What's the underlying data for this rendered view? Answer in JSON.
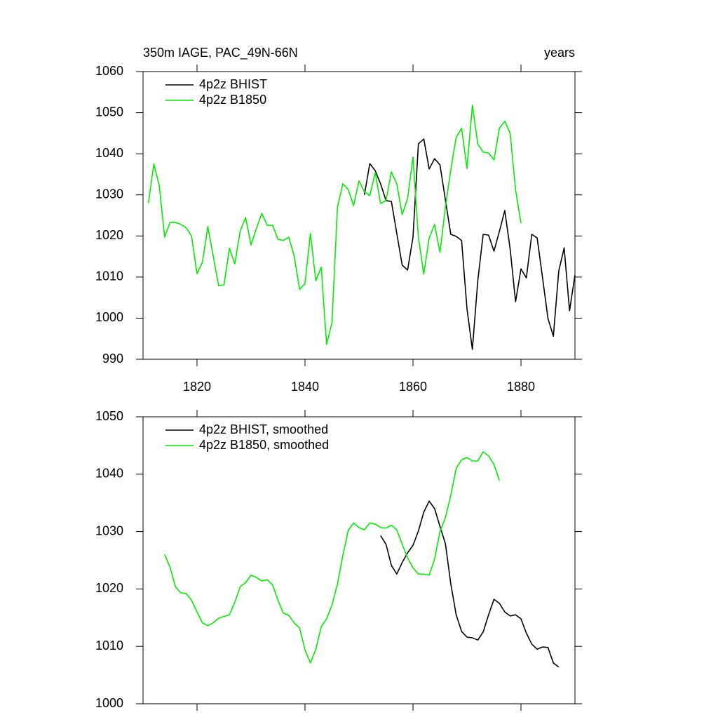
{
  "chart_data": [
    {
      "type": "line",
      "title": "350m IAGE, PAC_49N-66N",
      "title_right": "years",
      "xlim": [
        1810,
        1890
      ],
      "xticks": [
        1820,
        1840,
        1860,
        1880
      ],
      "ylim": [
        990,
        1060
      ],
      "yticks": [
        990,
        1000,
        1010,
        1020,
        1030,
        1040,
        1050,
        1060
      ],
      "legend": "upper left",
      "series": [
        {
          "name": "4p2z BHIST",
          "color": "#000000",
          "x": [
            1851,
            1852,
            1853,
            1854,
            1855,
            1856,
            1857,
            1858,
            1859,
            1860,
            1861,
            1862,
            1863,
            1864,
            1865,
            1866,
            1867,
            1868,
            1869,
            1870,
            1871,
            1872,
            1873,
            1874,
            1875,
            1876,
            1877,
            1878,
            1879,
            1880,
            1881,
            1882,
            1883,
            1884,
            1885,
            1886,
            1887,
            1888,
            1889,
            1890
          ],
          "values": [
            1030,
            1037.6,
            1035.9,
            1032.7,
            1028.6,
            1028.4,
            1020.6,
            1012.9,
            1011.7,
            1019.7,
            1042.4,
            1043.6,
            1036.3,
            1038.8,
            1037.3,
            1028.8,
            1020.4,
            1019.9,
            1018.9,
            1002.3,
            992.4,
            1009.1,
            1020.4,
            1020.2,
            1016.3,
            1021.1,
            1026.2,
            1016.8,
            1004,
            1012,
            1009.8,
            1020.4,
            1019.5,
            1009.8,
            999.9,
            995.6,
            1011.5,
            1017.1,
            1001.8,
            1010.5
          ]
        },
        {
          "name": "4p2z B1850",
          "color": "#00ee00",
          "x": [
            1811,
            1812,
            1813,
            1814,
            1815,
            1816,
            1817,
            1818,
            1819,
            1820,
            1821,
            1822,
            1823,
            1824,
            1825,
            1826,
            1827,
            1828,
            1829,
            1830,
            1831,
            1832,
            1833,
            1834,
            1835,
            1836,
            1837,
            1838,
            1839,
            1840,
            1841,
            1842,
            1843,
            1844,
            1845,
            1846,
            1847,
            1848,
            1849,
            1850,
            1851,
            1852,
            1853,
            1854,
            1855,
            1856,
            1857,
            1858,
            1859,
            1860,
            1861,
            1862,
            1863,
            1864,
            1865,
            1866,
            1867,
            1868,
            1869,
            1870,
            1871,
            1872,
            1873,
            1874,
            1875,
            1876,
            1877,
            1878,
            1879,
            1880
          ],
          "values": [
            1028,
            1037.5,
            1032.3,
            1019.7,
            1023.3,
            1023.3,
            1022.8,
            1022,
            1019.9,
            1010.8,
            1013.6,
            1022.3,
            1015.1,
            1007.9,
            1008.1,
            1017,
            1013.2,
            1021.2,
            1024.5,
            1017.8,
            1021.8,
            1025.5,
            1022.6,
            1022.6,
            1019.2,
            1018.9,
            1019.7,
            1015.1,
            1007,
            1008.4,
            1020.6,
            1009.1,
            1012.4,
            993.6,
            998.9,
            1026.9,
            1032.7,
            1031.3,
            1027.4,
            1033.4,
            1030.8,
            1029.8,
            1035.4,
            1027.9,
            1028.6,
            1035.6,
            1032.7,
            1025.2,
            1029.1,
            1039.2,
            1019.7,
            1010.7,
            1019.5,
            1022.8,
            1016,
            1027,
            1036.1,
            1044,
            1046.2,
            1036.4,
            1051.8,
            1042.4,
            1040.4,
            1040.2,
            1038.5,
            1046.2,
            1047.9,
            1045,
            1031.3,
            1023.1
          ]
        }
      ]
    },
    {
      "type": "line",
      "xlim": [
        1810,
        1890
      ],
      "xticks": [
        1820,
        1840,
        1860,
        1880
      ],
      "ylim": [
        1000,
        1050
      ],
      "yticks": [
        1000,
        1010,
        1020,
        1030,
        1040,
        1050
      ],
      "legend": "upper left",
      "series": [
        {
          "name": "4p2z BHIST, smoothed",
          "color": "#000000",
          "x": [
            1854,
            1855,
            1856,
            1857,
            1858,
            1859,
            1860,
            1861,
            1862,
            1863,
            1864,
            1865,
            1866,
            1867,
            1868,
            1869,
            1870,
            1871,
            1872,
            1873,
            1874,
            1875,
            1876,
            1877,
            1878,
            1879,
            1880,
            1881,
            1882,
            1883,
            1884,
            1885,
            1886,
            1887
          ],
          "values": [
            1029.3,
            1027.8,
            1024.1,
            1022.6,
            1024.6,
            1026.3,
            1027.6,
            1030.1,
            1033.4,
            1035.3,
            1034,
            1030.9,
            1027.9,
            1020.9,
            1015.5,
            1012.6,
            1011.6,
            1011.5,
            1011.1,
            1012.5,
            1015.5,
            1018.2,
            1017.5,
            1016,
            1015.3,
            1015.5,
            1014.8,
            1012.3,
            1010.4,
            1009.5,
            1009.9,
            1009.8,
            1007.1,
            1006.4
          ]
        },
        {
          "name": "4p2z B1850, smoothed",
          "color": "#00ee00",
          "x": [
            1814,
            1815,
            1816,
            1817,
            1818,
            1819,
            1820,
            1821,
            1822,
            1823,
            1824,
            1825,
            1826,
            1827,
            1828,
            1829,
            1830,
            1831,
            1832,
            1833,
            1834,
            1835,
            1836,
            1837,
            1838,
            1839,
            1840,
            1841,
            1842,
            1843,
            1844,
            1845,
            1846,
            1847,
            1848,
            1849,
            1850,
            1851,
            1852,
            1853,
            1854,
            1855,
            1856,
            1857,
            1858,
            1859,
            1860,
            1861,
            1862,
            1863,
            1864,
            1865,
            1866,
            1867,
            1868,
            1869,
            1870,
            1871,
            1872,
            1873,
            1874,
            1875,
            1876
          ],
          "values": [
            1026,
            1023.8,
            1020.4,
            1019.3,
            1019.2,
            1018,
            1016,
            1014.1,
            1013.6,
            1014.1,
            1014.9,
            1015.2,
            1015.5,
            1017.7,
            1020.4,
            1021.1,
            1022.4,
            1022,
            1021.4,
            1021.6,
            1020.7,
            1018,
            1015.8,
            1015.4,
            1014.1,
            1013.2,
            1009.4,
            1007.1,
            1009.5,
            1013.4,
            1014.8,
            1017.2,
            1020.8,
            1025.8,
            1030.2,
            1031.5,
            1030.7,
            1030.3,
            1031.5,
            1031.3,
            1030.7,
            1030.6,
            1031.1,
            1030.3,
            1027.8,
            1025.4,
            1023.7,
            1022.6,
            1022.6,
            1022.4,
            1025.2,
            1030,
            1032.4,
            1036.3,
            1041,
            1042.5,
            1042.9,
            1042.3,
            1042.3,
            1043.9,
            1043.2,
            1041.7,
            1038.9
          ]
        }
      ]
    }
  ]
}
